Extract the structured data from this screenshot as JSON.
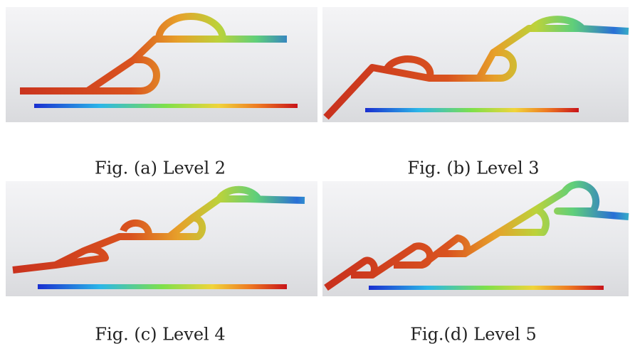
{
  "figures": [
    {
      "caption": "Fig. (a) Level 2"
    },
    {
      "caption": "Fig. (b) Level 3"
    },
    {
      "caption": "Fig. (c) Level 4"
    },
    {
      "caption": "Fig.(d) Level 5"
    }
  ]
}
